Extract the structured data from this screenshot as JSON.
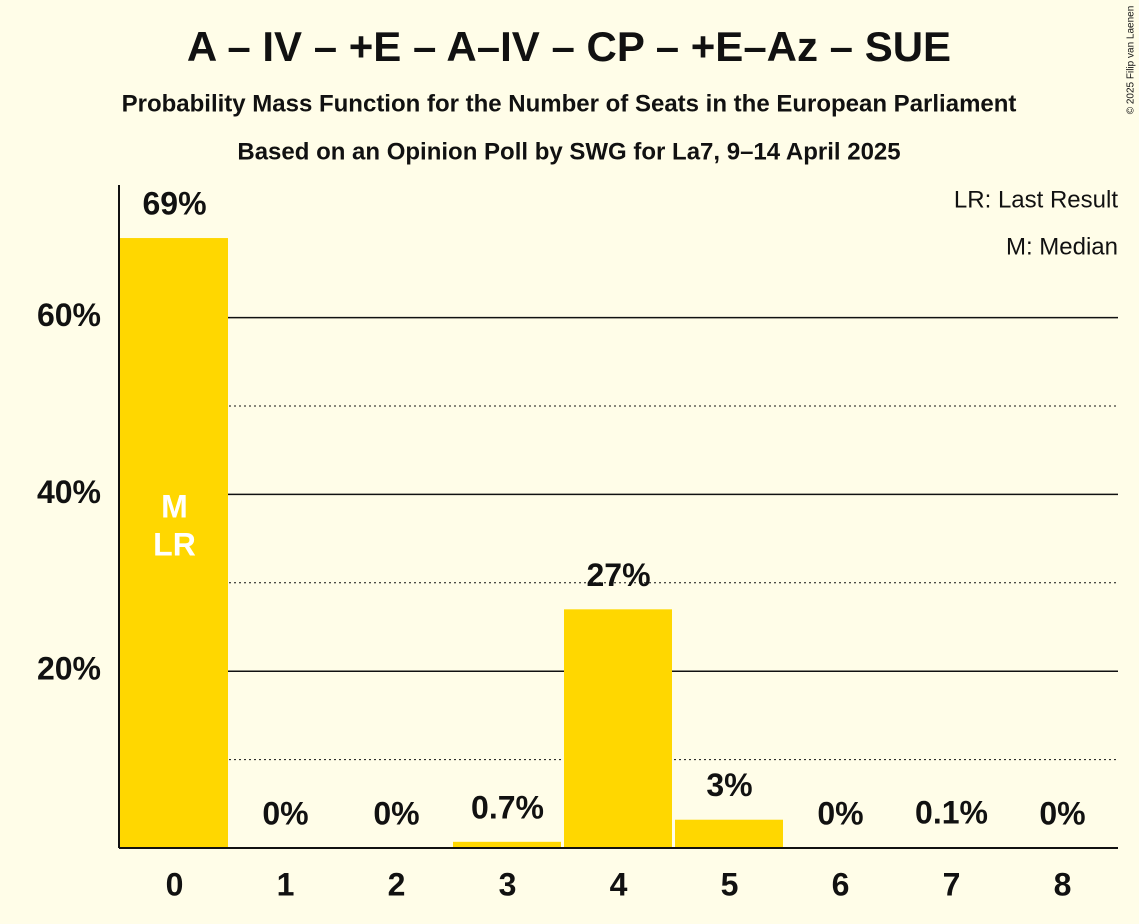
{
  "chart_data": {
    "type": "bar",
    "title": "A – IV – +E – A–IV – CP – +E–Az – SUE",
    "subtitle": "Probability Mass Function for the Number of Seats in the European Parliament",
    "subtitle2": "Based on an Opinion Poll by SWG for La7, 9–14 April 2025",
    "copyright": "© 2025 Filip van Laenen",
    "legend": [
      "LR: Last Result",
      "M: Median"
    ],
    "categories": [
      "0",
      "1",
      "2",
      "3",
      "4",
      "5",
      "6",
      "7",
      "8"
    ],
    "values": [
      69,
      0,
      0,
      0.7,
      27,
      3.2,
      0,
      0.1,
      0
    ],
    "value_labels": [
      "69%",
      "0%",
      "0%",
      "0.7%",
      "27%",
      "3%",
      "0%",
      "0.1%",
      "0%"
    ],
    "annotations": [
      {
        "category": 0,
        "lines": [
          "M",
          "LR"
        ]
      }
    ],
    "color": "#ffd700",
    "ylim": [
      0,
      75
    ],
    "yticks": [
      {
        "value": 20,
        "label": "20%"
      },
      {
        "value": 40,
        "label": "40%"
      },
      {
        "value": 60,
        "label": "60%"
      }
    ],
    "minor_yticks": [
      10,
      30,
      50
    ],
    "grid": true
  }
}
